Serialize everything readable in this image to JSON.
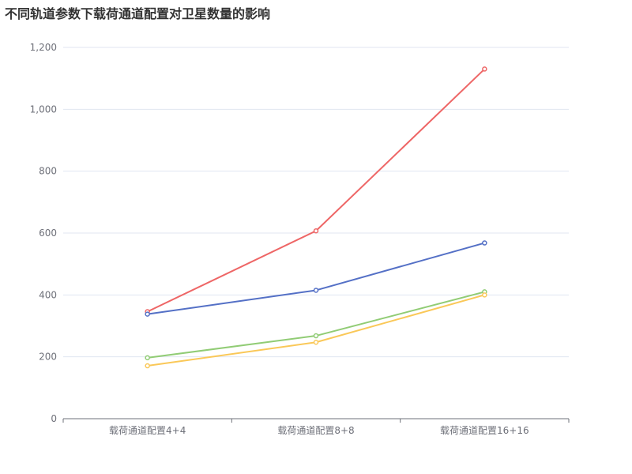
{
  "chart_data": {
    "type": "line",
    "title": "不同轨道参数下载荷通道配置对卫星数量的影响",
    "categories": [
      "载荷通道配置4+4",
      "载荷通道配置8+8",
      "载荷通道配置16+16"
    ],
    "y_ticks": [
      "0",
      "200",
      "400",
      "600",
      "800",
      "1,000",
      "1,200"
    ],
    "ylim": [
      0,
      1200
    ],
    "grid": true,
    "series": [
      {
        "color": "#ee6666",
        "values": [
          346,
          607,
          1130
        ]
      },
      {
        "color": "#5470c6",
        "values": [
          338,
          415,
          568
        ]
      },
      {
        "color": "#91cc75",
        "values": [
          197,
          268,
          410
        ]
      },
      {
        "color": "#fac858",
        "values": [
          171,
          247,
          400
        ]
      }
    ]
  }
}
